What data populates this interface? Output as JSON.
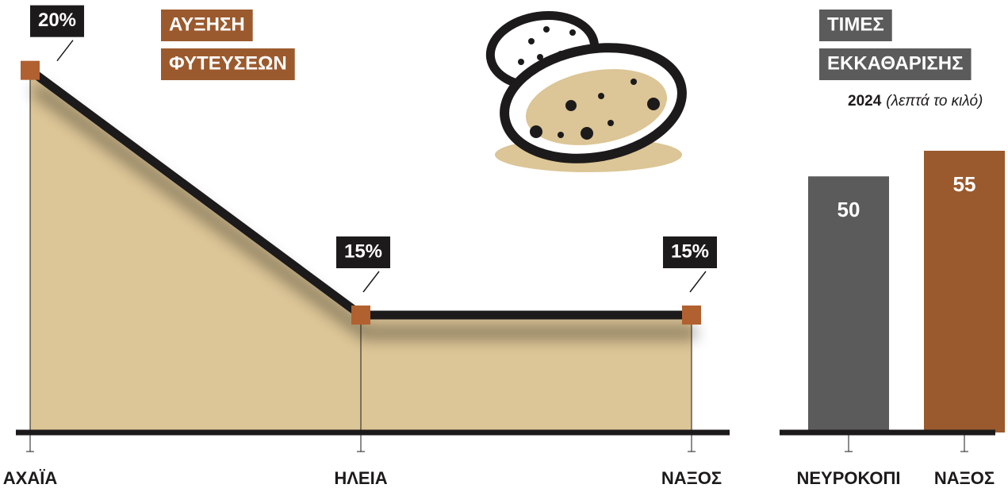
{
  "chart_data": [
    {
      "type": "area",
      "title": [
        "ΑΥΞΗΣΗ",
        "ΦΥΤΕΥΣΕΩΝ"
      ],
      "title_color": "#9b5a2e",
      "categories": [
        "ΑΧΑΪΑ",
        "ΗΛΕΙΑ",
        "ΝΑΞΟΣ"
      ],
      "values": [
        20,
        15,
        15
      ],
      "value_labels": [
        "20%",
        "15%",
        "15%"
      ],
      "ylim": [
        12.6,
        21
      ],
      "color": "#dcc596",
      "line_color": "#1c1a1a",
      "marker_color": "#b1602f"
    },
    {
      "type": "bar",
      "title": [
        "ΤΙΜΕΣ",
        "ΕΚΚΑΘΑΡΙΣΗΣ"
      ],
      "title_color": "#5b5b5b",
      "subtitle": [
        "2024",
        "(λεπτά το κιλό)"
      ],
      "categories": [
        "ΝΕΥΡΟΚΟΠΙ",
        "ΝΑΞΟΣ"
      ],
      "values": [
        50,
        55
      ],
      "ylim": [
        0,
        60
      ],
      "colors": [
        "#5b5b5b",
        "#9a5a2d"
      ]
    }
  ]
}
